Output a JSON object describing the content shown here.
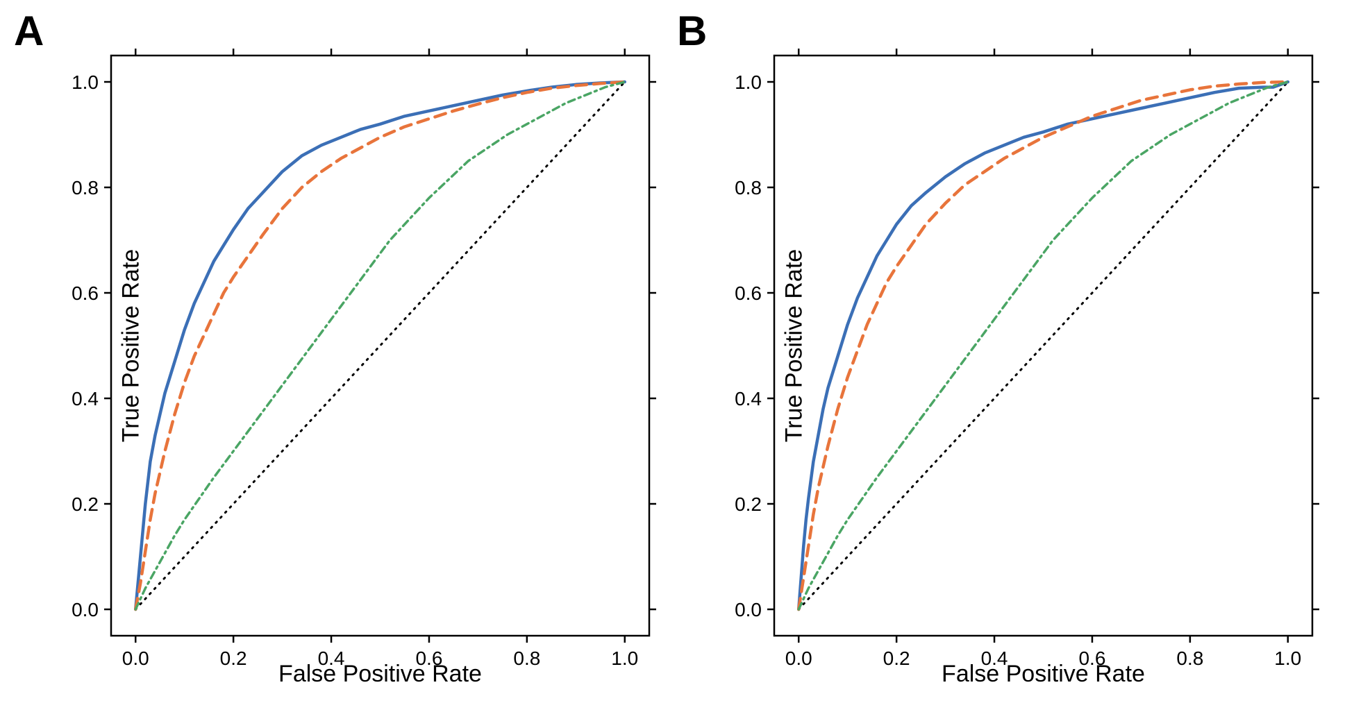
{
  "figure": {
    "background_color": "#ffffff",
    "panel_label_fontsize": 60,
    "panel_label_fontweight": "bold",
    "panel_label_color": "#000000",
    "axis_label_fontsize": 34,
    "tick_label_fontsize": 28,
    "axis_spine_color": "#000000",
    "axis_spine_width": 2.5,
    "tick_length": 10,
    "tick_width": 2.5
  },
  "panels": [
    {
      "label": "A",
      "xlabel": "False Positive Rate",
      "ylabel": "True Positive Rate",
      "xlim": [
        -0.05,
        1.05
      ],
      "ylim": [
        -0.05,
        1.05
      ],
      "xticks": [
        0.0,
        0.2,
        0.4,
        0.6,
        0.8,
        1.0
      ],
      "yticks": [
        0.0,
        0.2,
        0.4,
        0.6,
        0.8,
        1.0
      ],
      "xtick_labels": [
        "0.0",
        "0.2",
        "0.4",
        "0.6",
        "0.8",
        "1.0"
      ],
      "ytick_labels": [
        "0.0",
        "0.2",
        "0.4",
        "0.6",
        "0.8",
        "1.0"
      ],
      "diagonal": {
        "color": "#000000",
        "line_width": 3.0,
        "dash": "2,8",
        "points": [
          [
            0,
            0
          ],
          [
            1,
            1
          ]
        ]
      },
      "series": [
        {
          "name": "curve-blue",
          "color": "#3b6fb6",
          "line_width": 4.5,
          "dash": "none",
          "points": [
            [
              0.0,
              0.0
            ],
            [
              0.005,
              0.05
            ],
            [
              0.01,
              0.1
            ],
            [
              0.015,
              0.15
            ],
            [
              0.02,
              0.2
            ],
            [
              0.03,
              0.28
            ],
            [
              0.04,
              0.33
            ],
            [
              0.05,
              0.37
            ],
            [
              0.06,
              0.41
            ],
            [
              0.08,
              0.47
            ],
            [
              0.1,
              0.53
            ],
            [
              0.12,
              0.58
            ],
            [
              0.14,
              0.62
            ],
            [
              0.16,
              0.66
            ],
            [
              0.18,
              0.69
            ],
            [
              0.2,
              0.72
            ],
            [
              0.23,
              0.76
            ],
            [
              0.26,
              0.79
            ],
            [
              0.3,
              0.83
            ],
            [
              0.34,
              0.86
            ],
            [
              0.38,
              0.88
            ],
            [
              0.42,
              0.895
            ],
            [
              0.46,
              0.91
            ],
            [
              0.5,
              0.92
            ],
            [
              0.55,
              0.935
            ],
            [
              0.6,
              0.945
            ],
            [
              0.65,
              0.955
            ],
            [
              0.7,
              0.965
            ],
            [
              0.75,
              0.975
            ],
            [
              0.8,
              0.983
            ],
            [
              0.85,
              0.99
            ],
            [
              0.9,
              0.995
            ],
            [
              0.95,
              0.998
            ],
            [
              1.0,
              1.0
            ]
          ]
        },
        {
          "name": "curve-orange",
          "color": "#e8743b",
          "line_width": 4.5,
          "dash": "16,10",
          "points": [
            [
              0.0,
              0.0
            ],
            [
              0.01,
              0.05
            ],
            [
              0.02,
              0.11
            ],
            [
              0.03,
              0.17
            ],
            [
              0.04,
              0.22
            ],
            [
              0.05,
              0.26
            ],
            [
              0.06,
              0.3
            ],
            [
              0.08,
              0.37
            ],
            [
              0.1,
              0.43
            ],
            [
              0.12,
              0.48
            ],
            [
              0.14,
              0.52
            ],
            [
              0.16,
              0.56
            ],
            [
              0.18,
              0.6
            ],
            [
              0.2,
              0.63
            ],
            [
              0.23,
              0.67
            ],
            [
              0.26,
              0.71
            ],
            [
              0.3,
              0.76
            ],
            [
              0.34,
              0.8
            ],
            [
              0.38,
              0.83
            ],
            [
              0.42,
              0.855
            ],
            [
              0.46,
              0.875
            ],
            [
              0.5,
              0.895
            ],
            [
              0.55,
              0.915
            ],
            [
              0.6,
              0.93
            ],
            [
              0.65,
              0.945
            ],
            [
              0.7,
              0.958
            ],
            [
              0.75,
              0.97
            ],
            [
              0.8,
              0.98
            ],
            [
              0.85,
              0.988
            ],
            [
              0.9,
              0.993
            ],
            [
              0.95,
              0.997
            ],
            [
              1.0,
              1.0
            ]
          ]
        },
        {
          "name": "curve-green",
          "color": "#4aa564",
          "line_width": 3.5,
          "dash": "10,6,3,6",
          "points": [
            [
              0.0,
              0.0
            ],
            [
              0.02,
              0.04
            ],
            [
              0.05,
              0.09
            ],
            [
              0.08,
              0.14
            ],
            [
              0.1,
              0.17
            ],
            [
              0.13,
              0.21
            ],
            [
              0.16,
              0.25
            ],
            [
              0.2,
              0.3
            ],
            [
              0.24,
              0.35
            ],
            [
              0.28,
              0.4
            ],
            [
              0.32,
              0.45
            ],
            [
              0.36,
              0.5
            ],
            [
              0.4,
              0.55
            ],
            [
              0.44,
              0.6
            ],
            [
              0.48,
              0.65
            ],
            [
              0.52,
              0.7
            ],
            [
              0.56,
              0.74
            ],
            [
              0.6,
              0.78
            ],
            [
              0.64,
              0.815
            ],
            [
              0.68,
              0.85
            ],
            [
              0.72,
              0.875
            ],
            [
              0.76,
              0.9
            ],
            [
              0.8,
              0.92
            ],
            [
              0.84,
              0.94
            ],
            [
              0.88,
              0.96
            ],
            [
              0.92,
              0.975
            ],
            [
              0.96,
              0.99
            ],
            [
              1.0,
              1.0
            ]
          ]
        }
      ]
    },
    {
      "label": "B",
      "xlabel": "False Positive Rate",
      "ylabel": "True Positive Rate",
      "xlim": [
        -0.05,
        1.05
      ],
      "ylim": [
        -0.05,
        1.05
      ],
      "xticks": [
        0.0,
        0.2,
        0.4,
        0.6,
        0.8,
        1.0
      ],
      "yticks": [
        0.0,
        0.2,
        0.4,
        0.6,
        0.8,
        1.0
      ],
      "xtick_labels": [
        "0.0",
        "0.2",
        "0.4",
        "0.6",
        "0.8",
        "1.0"
      ],
      "ytick_labels": [
        "0.0",
        "0.2",
        "0.4",
        "0.6",
        "0.8",
        "1.0"
      ],
      "diagonal": {
        "color": "#000000",
        "line_width": 3.0,
        "dash": "2,8",
        "points": [
          [
            0,
            0
          ],
          [
            1,
            1
          ]
        ]
      },
      "series": [
        {
          "name": "curve-blue",
          "color": "#3b6fb6",
          "line_width": 4.5,
          "dash": "none",
          "points": [
            [
              0.0,
              0.0
            ],
            [
              0.005,
              0.06
            ],
            [
              0.01,
              0.12
            ],
            [
              0.015,
              0.17
            ],
            [
              0.02,
              0.21
            ],
            [
              0.03,
              0.28
            ],
            [
              0.04,
              0.33
            ],
            [
              0.05,
              0.38
            ],
            [
              0.06,
              0.42
            ],
            [
              0.08,
              0.48
            ],
            [
              0.1,
              0.54
            ],
            [
              0.12,
              0.59
            ],
            [
              0.14,
              0.63
            ],
            [
              0.16,
              0.67
            ],
            [
              0.18,
              0.7
            ],
            [
              0.2,
              0.73
            ],
            [
              0.23,
              0.765
            ],
            [
              0.26,
              0.79
            ],
            [
              0.3,
              0.82
            ],
            [
              0.34,
              0.845
            ],
            [
              0.38,
              0.865
            ],
            [
              0.42,
              0.88
            ],
            [
              0.46,
              0.895
            ],
            [
              0.5,
              0.905
            ],
            [
              0.55,
              0.92
            ],
            [
              0.6,
              0.93
            ],
            [
              0.65,
              0.94
            ],
            [
              0.7,
              0.95
            ],
            [
              0.75,
              0.96
            ],
            [
              0.8,
              0.97
            ],
            [
              0.85,
              0.98
            ],
            [
              0.9,
              0.988
            ],
            [
              0.95,
              0.99
            ],
            [
              0.97,
              0.99
            ],
            [
              1.0,
              1.0
            ]
          ]
        },
        {
          "name": "curve-orange",
          "color": "#e8743b",
          "line_width": 4.5,
          "dash": "16,10",
          "points": [
            [
              0.0,
              0.0
            ],
            [
              0.01,
              0.06
            ],
            [
              0.02,
              0.12
            ],
            [
              0.03,
              0.18
            ],
            [
              0.04,
              0.23
            ],
            [
              0.05,
              0.27
            ],
            [
              0.06,
              0.31
            ],
            [
              0.08,
              0.38
            ],
            [
              0.1,
              0.44
            ],
            [
              0.12,
              0.49
            ],
            [
              0.14,
              0.54
            ],
            [
              0.16,
              0.58
            ],
            [
              0.18,
              0.62
            ],
            [
              0.2,
              0.65
            ],
            [
              0.23,
              0.69
            ],
            [
              0.26,
              0.73
            ],
            [
              0.3,
              0.77
            ],
            [
              0.34,
              0.805
            ],
            [
              0.38,
              0.83
            ],
            [
              0.42,
              0.855
            ],
            [
              0.46,
              0.875
            ],
            [
              0.5,
              0.895
            ],
            [
              0.55,
              0.915
            ],
            [
              0.6,
              0.935
            ],
            [
              0.65,
              0.95
            ],
            [
              0.7,
              0.965
            ],
            [
              0.75,
              0.975
            ],
            [
              0.8,
              0.985
            ],
            [
              0.85,
              0.992
            ],
            [
              0.9,
              0.996
            ],
            [
              0.95,
              0.999
            ],
            [
              1.0,
              1.0
            ]
          ]
        },
        {
          "name": "curve-green",
          "color": "#4aa564",
          "line_width": 3.5,
          "dash": "10,6,3,6",
          "points": [
            [
              0.0,
              0.0
            ],
            [
              0.02,
              0.04
            ],
            [
              0.05,
              0.09
            ],
            [
              0.08,
              0.14
            ],
            [
              0.1,
              0.17
            ],
            [
              0.13,
              0.21
            ],
            [
              0.16,
              0.25
            ],
            [
              0.2,
              0.3
            ],
            [
              0.24,
              0.35
            ],
            [
              0.28,
              0.4
            ],
            [
              0.32,
              0.45
            ],
            [
              0.36,
              0.5
            ],
            [
              0.4,
              0.55
            ],
            [
              0.44,
              0.6
            ],
            [
              0.48,
              0.65
            ],
            [
              0.52,
              0.7
            ],
            [
              0.56,
              0.74
            ],
            [
              0.6,
              0.78
            ],
            [
              0.64,
              0.815
            ],
            [
              0.68,
              0.85
            ],
            [
              0.72,
              0.875
            ],
            [
              0.76,
              0.9
            ],
            [
              0.8,
              0.92
            ],
            [
              0.84,
              0.94
            ],
            [
              0.88,
              0.96
            ],
            [
              0.92,
              0.975
            ],
            [
              0.96,
              0.99
            ],
            [
              1.0,
              1.0
            ]
          ]
        }
      ]
    }
  ]
}
